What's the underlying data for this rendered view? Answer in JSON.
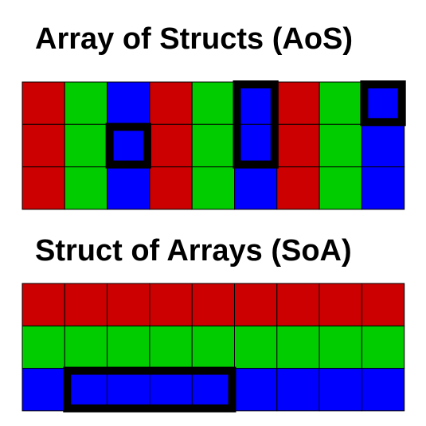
{
  "aos": {
    "title": "Array of Structs (AoS)",
    "rows": [
      [
        "red",
        "green",
        "blue",
        "red",
        "green",
        "blue",
        "red",
        "green",
        "blue"
      ],
      [
        "red",
        "green",
        "blue",
        "red",
        "green",
        "blue",
        "red",
        "green",
        "blue"
      ],
      [
        "red",
        "green",
        "blue",
        "red",
        "green",
        "blue",
        "red",
        "green",
        "blue"
      ]
    ],
    "highlights": [
      {
        "row": 1,
        "col": 2,
        "rows": 1,
        "cols": 1
      },
      {
        "row": 0,
        "col": 5,
        "rows": 2,
        "cols": 1
      },
      {
        "row": 0,
        "col": 8,
        "rows": 1,
        "cols": 1
      }
    ]
  },
  "soa": {
    "title": "Struct of Arrays (SoA)",
    "rows": [
      [
        "red",
        "red",
        "red",
        "red",
        "red",
        "red",
        "red",
        "red",
        "red"
      ],
      [
        "green",
        "green",
        "green",
        "green",
        "green",
        "green",
        "green",
        "green",
        "green"
      ],
      [
        "blue",
        "blue",
        "blue",
        "blue",
        "blue",
        "blue",
        "blue",
        "blue",
        "blue"
      ]
    ],
    "highlights": [
      {
        "row": 2,
        "col": 1,
        "rows": 1,
        "cols": 4
      }
    ]
  },
  "colors": {
    "red": "#cc0000",
    "green": "#00cc00",
    "blue": "#0000ff",
    "grid_line": "#000000",
    "highlight_border": "#000000"
  }
}
